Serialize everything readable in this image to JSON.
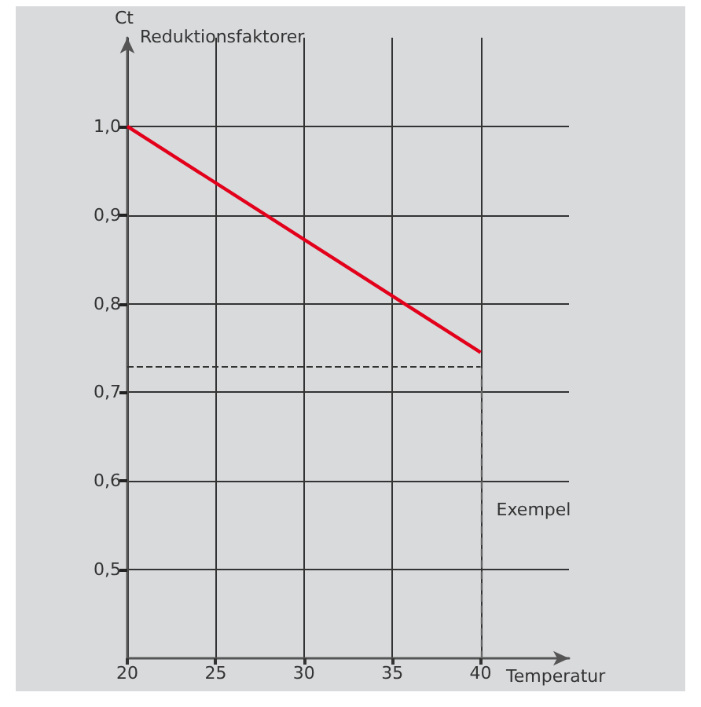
{
  "chart_data": {
    "type": "line",
    "ylabel": "Ct",
    "xlabel": "Temperatur",
    "annotations": [
      "Reduktionsfaktorer"
    ],
    "x": [
      20,
      40
    ],
    "series": [
      {
        "color": "#e3001b",
        "values": [
          1.0,
          0.745
        ]
      }
    ],
    "xlim": [
      20,
      45
    ],
    "xticks": [
      20,
      25,
      30,
      35,
      40
    ],
    "ylim": [
      0.4,
      1.1
    ],
    "yticks": [
      {
        "value": 0.5,
        "label": "0,5"
      },
      {
        "value": 0.6,
        "label": "0,6"
      },
      {
        "value": 0.7,
        "label": "0,7"
      },
      {
        "value": 0.8,
        "label": "0,8"
      },
      {
        "value": 0.9,
        "label": "0,9"
      },
      {
        "value": 1.0,
        "label": "1,0"
      }
    ],
    "ref_lines": [
      {
        "axis": "y",
        "value": 0.73,
        "line_style": "dashed",
        "color": "#333333"
      },
      {
        "axis": "x",
        "value": 40,
        "label": "Exempel",
        "line_style": "dashed",
        "color": "#666666"
      }
    ],
    "grid": true,
    "marker": "none",
    "line_style": "solid"
  }
}
